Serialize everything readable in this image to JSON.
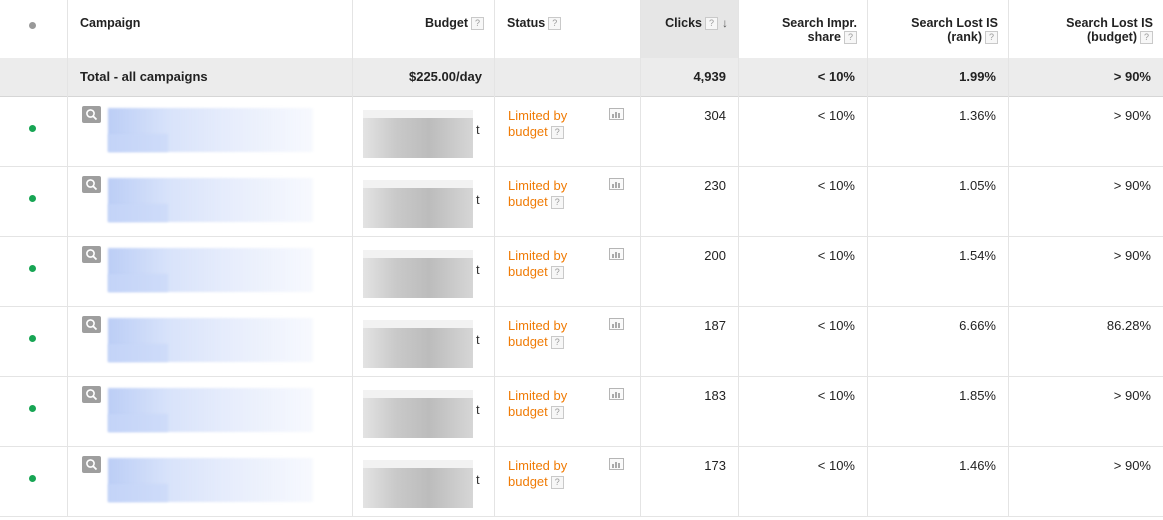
{
  "header": {
    "status_col_label": "",
    "campaign": "Campaign",
    "budget": "Budget",
    "status": "Status",
    "clicks": "Clicks",
    "impr_share": [
      "Search Impr.",
      "share"
    ],
    "lost_rank": [
      "Search Lost IS",
      "(rank)"
    ],
    "lost_budget": [
      "Search Lost IS",
      "(budget)"
    ],
    "help_glyph": "?",
    "sort_glyph": "↓"
  },
  "total": {
    "label": "Total - all campaigns",
    "budget": "$225.00/day",
    "clicks": "4,939",
    "impr_share": "< 10%",
    "lost_rank": "1.99%",
    "lost_budget": "> 90%"
  },
  "rows": [
    {
      "status": [
        "Limited by",
        "budget"
      ],
      "clicks": "304",
      "impr_share": "< 10%",
      "lost_rank": "1.36%",
      "lost_budget": "> 90%"
    },
    {
      "status": [
        "Limited by",
        "budget"
      ],
      "clicks": "230",
      "impr_share": "< 10%",
      "lost_rank": "1.05%",
      "lost_budget": "> 90%"
    },
    {
      "status": [
        "Limited by",
        "budget"
      ],
      "clicks": "200",
      "impr_share": "< 10%",
      "lost_rank": "1.54%",
      "lost_budget": "> 90%"
    },
    {
      "status": [
        "Limited by",
        "budget"
      ],
      "clicks": "187",
      "impr_share": "< 10%",
      "lost_rank": "6.66%",
      "lost_budget": "86.28%"
    },
    {
      "status": [
        "Limited by",
        "budget"
      ],
      "clicks": "183",
      "impr_share": "< 10%",
      "lost_rank": "1.85%",
      "lost_budget": "> 90%"
    },
    {
      "status": [
        "Limited by",
        "budget"
      ],
      "clicks": "173",
      "impr_share": "< 10%",
      "lost_rank": "1.46%",
      "lost_budget": "> 90%"
    }
  ],
  "budget_suffix_char": "t",
  "colors": {
    "status_orange": "#f07b05",
    "enabled_dot": "#17a554",
    "total_row_bg": "#ececec",
    "sorted_col_bg": "#e6e6e6"
  },
  "icons": {
    "row_type": "search-campaign-icon",
    "status_chart": "bar-chart-icon"
  }
}
